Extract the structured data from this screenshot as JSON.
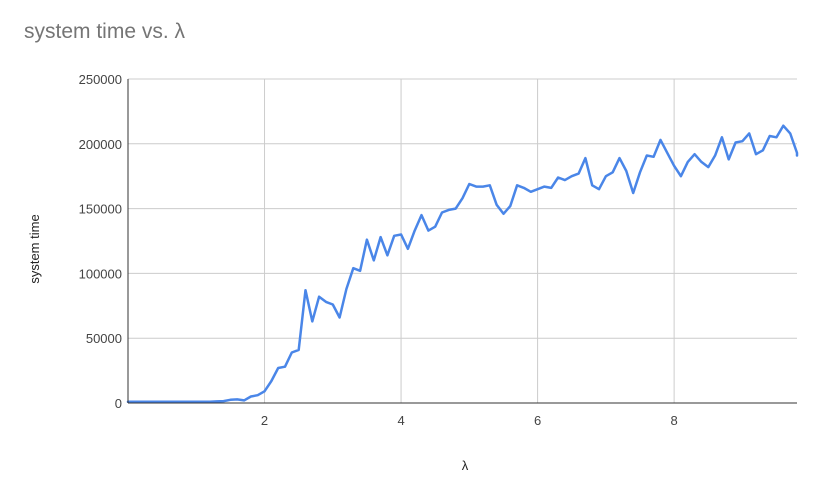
{
  "chart_data": {
    "type": "line",
    "title": "system time vs. λ",
    "xlabel": "λ",
    "ylabel": "system time",
    "xlim": [
      0,
      9.8
    ],
    "ylim": [
      0,
      250000
    ],
    "x_ticks": [
      2,
      4,
      6,
      8
    ],
    "y_ticks": [
      0,
      50000,
      100000,
      150000,
      200000,
      250000
    ],
    "grid": true,
    "legend": "none",
    "series": [
      {
        "color": "#4a86e8",
        "points": [
          [
            0.0,
            1000
          ],
          [
            0.1,
            1000
          ],
          [
            0.2,
            1000
          ],
          [
            0.3,
            1000
          ],
          [
            0.4,
            1000
          ],
          [
            0.5,
            1000
          ],
          [
            0.6,
            1000
          ],
          [
            0.7,
            1000
          ],
          [
            0.8,
            1000
          ],
          [
            0.9,
            1000
          ],
          [
            1.0,
            1000
          ],
          [
            1.1,
            1000
          ],
          [
            1.2,
            1000
          ],
          [
            1.3,
            1200
          ],
          [
            1.4,
            1500
          ],
          [
            1.5,
            2500
          ],
          [
            1.6,
            2800
          ],
          [
            1.7,
            2000
          ],
          [
            1.8,
            5000
          ],
          [
            1.9,
            6000
          ],
          [
            2.0,
            9000
          ],
          [
            2.1,
            17000
          ],
          [
            2.2,
            27000
          ],
          [
            2.3,
            28000
          ],
          [
            2.4,
            39000
          ],
          [
            2.5,
            41000
          ],
          [
            2.6,
            87000
          ],
          [
            2.7,
            63000
          ],
          [
            2.8,
            82000
          ],
          [
            2.9,
            78000
          ],
          [
            3.0,
            76000
          ],
          [
            3.1,
            66000
          ],
          [
            3.2,
            88000
          ],
          [
            3.3,
            104000
          ],
          [
            3.4,
            102000
          ],
          [
            3.5,
            126000
          ],
          [
            3.6,
            110000
          ],
          [
            3.7,
            128000
          ],
          [
            3.8,
            114000
          ],
          [
            3.9,
            129000
          ],
          [
            4.0,
            130000
          ],
          [
            4.1,
            119000
          ],
          [
            4.2,
            133000
          ],
          [
            4.3,
            145000
          ],
          [
            4.4,
            133000
          ],
          [
            4.5,
            136000
          ],
          [
            4.6,
            147000
          ],
          [
            4.7,
            149000
          ],
          [
            4.8,
            150000
          ],
          [
            4.9,
            158000
          ],
          [
            5.0,
            169000
          ],
          [
            5.1,
            167000
          ],
          [
            5.2,
            167000
          ],
          [
            5.3,
            168000
          ],
          [
            5.4,
            153000
          ],
          [
            5.5,
            146000
          ],
          [
            5.6,
            152000
          ],
          [
            5.7,
            168000
          ],
          [
            5.8,
            166000
          ],
          [
            5.9,
            163000
          ],
          [
            6.0,
            165000
          ],
          [
            6.1,
            167000
          ],
          [
            6.2,
            166000
          ],
          [
            6.3,
            174000
          ],
          [
            6.4,
            172000
          ],
          [
            6.5,
            175000
          ],
          [
            6.6,
            177000
          ],
          [
            6.7,
            189000
          ],
          [
            6.8,
            168000
          ],
          [
            6.9,
            165000
          ],
          [
            7.0,
            175000
          ],
          [
            7.1,
            178000
          ],
          [
            7.2,
            189000
          ],
          [
            7.3,
            179000
          ],
          [
            7.4,
            162000
          ],
          [
            7.5,
            178000
          ],
          [
            7.6,
            191000
          ],
          [
            7.7,
            190000
          ],
          [
            7.8,
            203000
          ],
          [
            7.9,
            193000
          ],
          [
            8.0,
            183000
          ],
          [
            8.1,
            175000
          ],
          [
            8.2,
            186000
          ],
          [
            8.3,
            192000
          ],
          [
            8.4,
            186000
          ],
          [
            8.5,
            182000
          ],
          [
            8.6,
            191000
          ],
          [
            8.7,
            205000
          ],
          [
            8.8,
            188000
          ],
          [
            8.9,
            201000
          ],
          [
            9.0,
            202000
          ],
          [
            9.1,
            208000
          ],
          [
            9.2,
            192000
          ],
          [
            9.3,
            195000
          ],
          [
            9.4,
            206000
          ],
          [
            9.5,
            205000
          ],
          [
            9.6,
            214000
          ],
          [
            9.7,
            208000
          ],
          [
            9.8,
            193000
          ],
          [
            9.9,
            191000
          ]
        ]
      }
    ]
  }
}
